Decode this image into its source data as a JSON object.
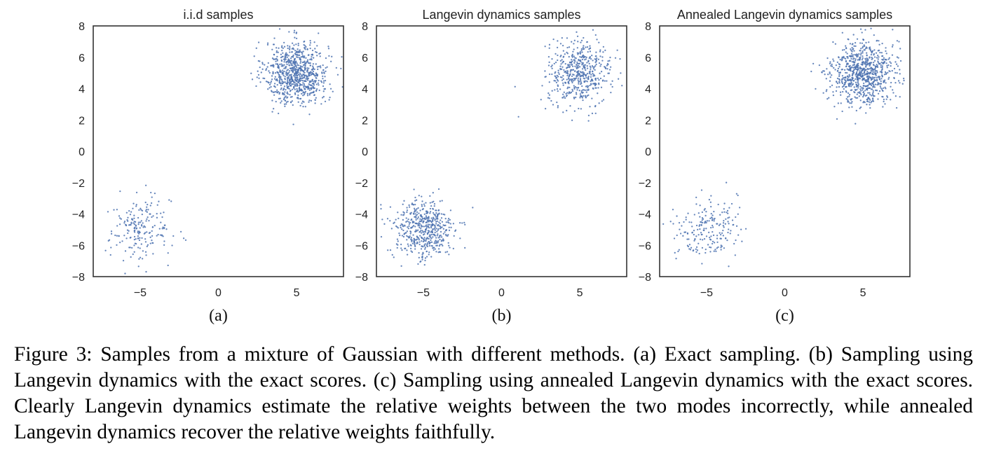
{
  "chart_data": [
    {
      "type": "scatter",
      "title": "i.i.d samples",
      "sublabel": "(a)",
      "xlim": [
        -8,
        8
      ],
      "ylim": [
        -8,
        8
      ],
      "xticks": [
        -5,
        0,
        5
      ],
      "yticks": [
        -8,
        -6,
        -4,
        -2,
        0,
        2,
        4,
        6,
        8
      ],
      "xtick_labels": [
        "−5",
        "0",
        "5"
      ],
      "ytick_labels": [
        "−8",
        "−6",
        "−4",
        "−2",
        "0",
        "2",
        "4",
        "6",
        "8"
      ],
      "grid": false,
      "marker_color": "#4c72b0",
      "series": [
        {
          "center": [
            5,
            5
          ],
          "std": 1,
          "count": 820
        },
        {
          "center": [
            -5,
            -5
          ],
          "std": 1,
          "count": 200
        }
      ]
    },
    {
      "type": "scatter",
      "title": "Langevin dynamics samples",
      "sublabel": "(b)",
      "xlim": [
        -8,
        8
      ],
      "ylim": [
        -8,
        8
      ],
      "xticks": [
        -5,
        0,
        5
      ],
      "yticks": [
        -8,
        -6,
        -4,
        -2,
        0,
        2,
        4,
        6,
        8
      ],
      "xtick_labels": [
        "−5",
        "0",
        "5"
      ],
      "ytick_labels": [
        "−8",
        "−6",
        "−4",
        "−2",
        "0",
        "2",
        "4",
        "6",
        "8"
      ],
      "grid": false,
      "marker_color": "#4c72b0",
      "series": [
        {
          "center": [
            5,
            5
          ],
          "std": 1,
          "count": 520
        },
        {
          "center": [
            -5,
            -5
          ],
          "std": 1,
          "count": 520
        }
      ]
    },
    {
      "type": "scatter",
      "title": "Annealed Langevin dynamics samples",
      "sublabel": "(c)",
      "xlim": [
        -8,
        8
      ],
      "ylim": [
        -8,
        8
      ],
      "xticks": [
        -5,
        0,
        5
      ],
      "yticks": [
        -8,
        -6,
        -4,
        -2,
        0,
        2,
        4,
        6,
        8
      ],
      "xtick_labels": [
        "−5",
        "0",
        "5"
      ],
      "ytick_labels": [
        "−8",
        "−6",
        "−4",
        "−2",
        "0",
        "2",
        "4",
        "6",
        "8"
      ],
      "grid": false,
      "marker_color": "#4c72b0",
      "series": [
        {
          "center": [
            5,
            5
          ],
          "std": 1,
          "count": 820
        },
        {
          "center": [
            -5,
            -5
          ],
          "std": 1,
          "count": 200
        }
      ]
    }
  ],
  "caption": {
    "text": "Figure 3: Samples from a mixture of Gaussian with different methods. (a) Exact sampling. (b) Sampling using Langevin dynamics with the exact scores. (c) Sampling using annealed Langevin dynamics with the exact scores. Clearly Langevin dynamics estimate the relative weights between the two modes incorrectly, while annealed Langevin dynamics recover the relative weights faithfully."
  }
}
